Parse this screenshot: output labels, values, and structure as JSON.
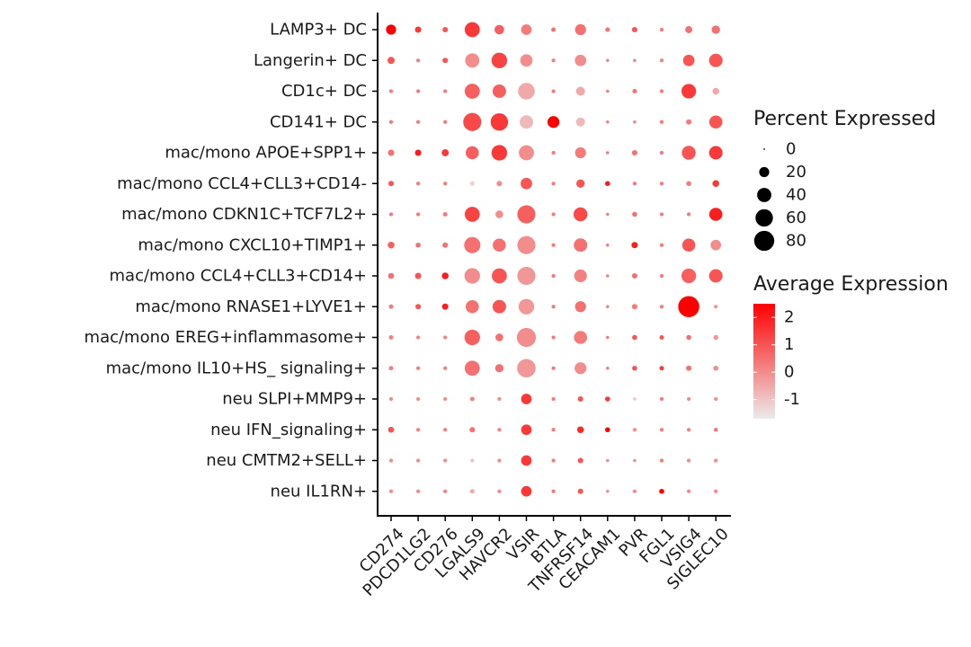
{
  "chart_data": {
    "type": "dot",
    "genes": [
      "CD274",
      "PDCD1LG2",
      "CD276",
      "LGALS9",
      "HAVCR2",
      "VSIR",
      "BTLA",
      "TNFRSF14",
      "CEACAM1",
      "PVR",
      "FGL1",
      "VSIG4",
      "SIGLEC10"
    ],
    "cell_types": [
      "LAMP3+ DC",
      "Langerin+ DC",
      "CD1c+ DC",
      "CD141+ DC",
      "mac/mono APOE+SPP1+",
      "mac/mono CCL4+CLL3+CD14-",
      "mac/mono CDKN1C+TCF7L2+",
      "mac/mono CXCL10+TIMP1+",
      "mac/mono CCL4+CLL3+CD14+",
      "mac/mono RNASE1+LYVE1+",
      "mac/mono EREG+inflammasome+",
      "mac/mono IL10+HS_ signaling+",
      "neu SLPI+MMP9+",
      "neu IFN_signaling+",
      "neu CMTM2+SELL+",
      "neu IL1RN+"
    ],
    "percent_expressed": [
      [
        20,
        8,
        6,
        45,
        18,
        22,
        4,
        24,
        4,
        6,
        3,
        10,
        14
      ],
      [
        10,
        3,
        6,
        40,
        48,
        30,
        3,
        26,
        2,
        2,
        3,
        26,
        36
      ],
      [
        3,
        3,
        3,
        45,
        36,
        55,
        3,
        16,
        2,
        4,
        3,
        42,
        9
      ],
      [
        3,
        3,
        3,
        65,
        60,
        36,
        28,
        16,
        2,
        2,
        3,
        6,
        34
      ],
      [
        8,
        8,
        10,
        34,
        48,
        45,
        3,
        24,
        2,
        6,
        3,
        38,
        36
      ],
      [
        6,
        3,
        3,
        4,
        6,
        26,
        3,
        14,
        5,
        3,
        3,
        5,
        9
      ],
      [
        3,
        3,
        4,
        45,
        12,
        65,
        3,
        38,
        2,
        5,
        3,
        3,
        34
      ],
      [
        9,
        5,
        6,
        52,
        34,
        65,
        3,
        36,
        2,
        8,
        3,
        34,
        22
      ],
      [
        7,
        8,
        9,
        48,
        45,
        65,
        3,
        32,
        2,
        6,
        3,
        42,
        36
      ],
      [
        4,
        6,
        8,
        34,
        36,
        48,
        3,
        24,
        2,
        6,
        3,
        88,
        3
      ],
      [
        4,
        3,
        3,
        48,
        12,
        72,
        3,
        34,
        2,
        5,
        4,
        5,
        5
      ],
      [
        4,
        3,
        3,
        45,
        14,
        68,
        3,
        28,
        2,
        5,
        4,
        6,
        5
      ],
      [
        3,
        3,
        3,
        4,
        3,
        22,
        3,
        6,
        5,
        2,
        3,
        3,
        3
      ],
      [
        7,
        3,
        3,
        6,
        3,
        22,
        3,
        9,
        5,
        3,
        3,
        3,
        3
      ],
      [
        3,
        3,
        3,
        3,
        3,
        22,
        3,
        6,
        2,
        2,
        3,
        3,
        3
      ],
      [
        3,
        3,
        3,
        4,
        3,
        22,
        3,
        6,
        2,
        3,
        5,
        3,
        3
      ]
    ],
    "average_expression": [
      [
        2.5,
        1.5,
        1.0,
        1.5,
        0.8,
        0.3,
        0.5,
        0.5,
        0.5,
        1.0,
        0.3,
        0.5,
        0.5
      ],
      [
        1.0,
        0.2,
        1.0,
        0.0,
        1.3,
        0.0,
        0.2,
        0.0,
        0.2,
        0.2,
        0.2,
        1.0,
        1.0
      ],
      [
        0.3,
        0.3,
        0.3,
        0.8,
        0.8,
        -0.5,
        0.3,
        -0.5,
        0.3,
        0.5,
        0.3,
        1.5,
        -0.5
      ],
      [
        0.3,
        0.3,
        0.3,
        1.2,
        1.5,
        -0.8,
        2.5,
        -0.8,
        0.2,
        0.2,
        0.3,
        0.3,
        1.0
      ],
      [
        0.5,
        2.0,
        1.5,
        0.8,
        1.5,
        0.0,
        0.3,
        0.3,
        0.3,
        0.5,
        0.3,
        1.0,
        1.5
      ],
      [
        1.0,
        0.3,
        0.3,
        -1.2,
        0.0,
        1.0,
        0.3,
        1.0,
        2.0,
        0.3,
        0.3,
        0.3,
        1.5
      ],
      [
        0.3,
        0.3,
        0.3,
        1.3,
        0.0,
        0.8,
        0.3,
        1.2,
        0.2,
        0.5,
        0.3,
        0.3,
        2.0
      ],
      [
        0.8,
        0.5,
        0.5,
        0.5,
        0.5,
        0.0,
        0.3,
        0.5,
        0.3,
        2.0,
        0.3,
        1.0,
        0.0
      ],
      [
        0.5,
        1.0,
        2.0,
        0.0,
        1.0,
        -0.2,
        0.3,
        0.2,
        0.2,
        0.5,
        0.3,
        0.8,
        1.0
      ],
      [
        0.3,
        1.0,
        2.0,
        0.5,
        1.0,
        -0.2,
        0.3,
        0.5,
        0.2,
        0.3,
        0.3,
        2.5,
        -0.2
      ],
      [
        0.2,
        0.2,
        0.2,
        0.8,
        0.5,
        0.0,
        0.3,
        0.3,
        0.3,
        1.0,
        1.0,
        0.5,
        -0.2
      ],
      [
        0.2,
        0.2,
        0.2,
        0.5,
        0.5,
        -0.2,
        0.3,
        0.0,
        0.3,
        1.0,
        1.5,
        0.5,
        0.0
      ],
      [
        0.0,
        0.0,
        0.0,
        0.2,
        0.0,
        1.5,
        0.3,
        1.0,
        1.5,
        -1.0,
        0.3,
        0.0,
        0.0
      ],
      [
        1.0,
        0.2,
        0.2,
        0.5,
        0.2,
        1.5,
        0.3,
        1.8,
        2.5,
        0.0,
        0.3,
        0.2,
        0.5
      ],
      [
        0.0,
        0.0,
        0.0,
        -1.0,
        0.0,
        1.5,
        0.3,
        1.0,
        0.0,
        0.0,
        0.3,
        0.0,
        0.0
      ],
      [
        0.0,
        0.0,
        0.2,
        -0.5,
        0.0,
        1.5,
        0.3,
        1.0,
        0.0,
        0.0,
        2.5,
        0.0,
        0.0
      ]
    ],
    "size_legend": {
      "title": "Percent Expressed",
      "values": [
        0,
        20,
        40,
        60,
        80
      ]
    },
    "color_legend": {
      "title": "Average Expression",
      "ticks": [
        2,
        1,
        0,
        -1
      ],
      "range": [
        -1.7,
        2.5
      ],
      "low_color": "#EBEBEB",
      "high_color": "#FF0000"
    },
    "grid": false,
    "legend_position": "right"
  }
}
